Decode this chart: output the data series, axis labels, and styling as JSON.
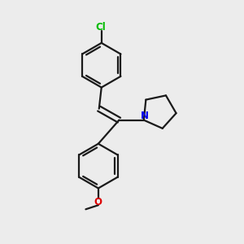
{
  "background_color": "#ececec",
  "bond_color": "#1a1a1a",
  "cl_color": "#00bb00",
  "n_color": "#0000ee",
  "o_color": "#dd0000",
  "line_width": 1.6,
  "figsize": [
    3.0,
    3.0
  ],
  "dpi": 100,
  "xlim": [
    0,
    10
  ],
  "ylim": [
    0,
    10
  ]
}
